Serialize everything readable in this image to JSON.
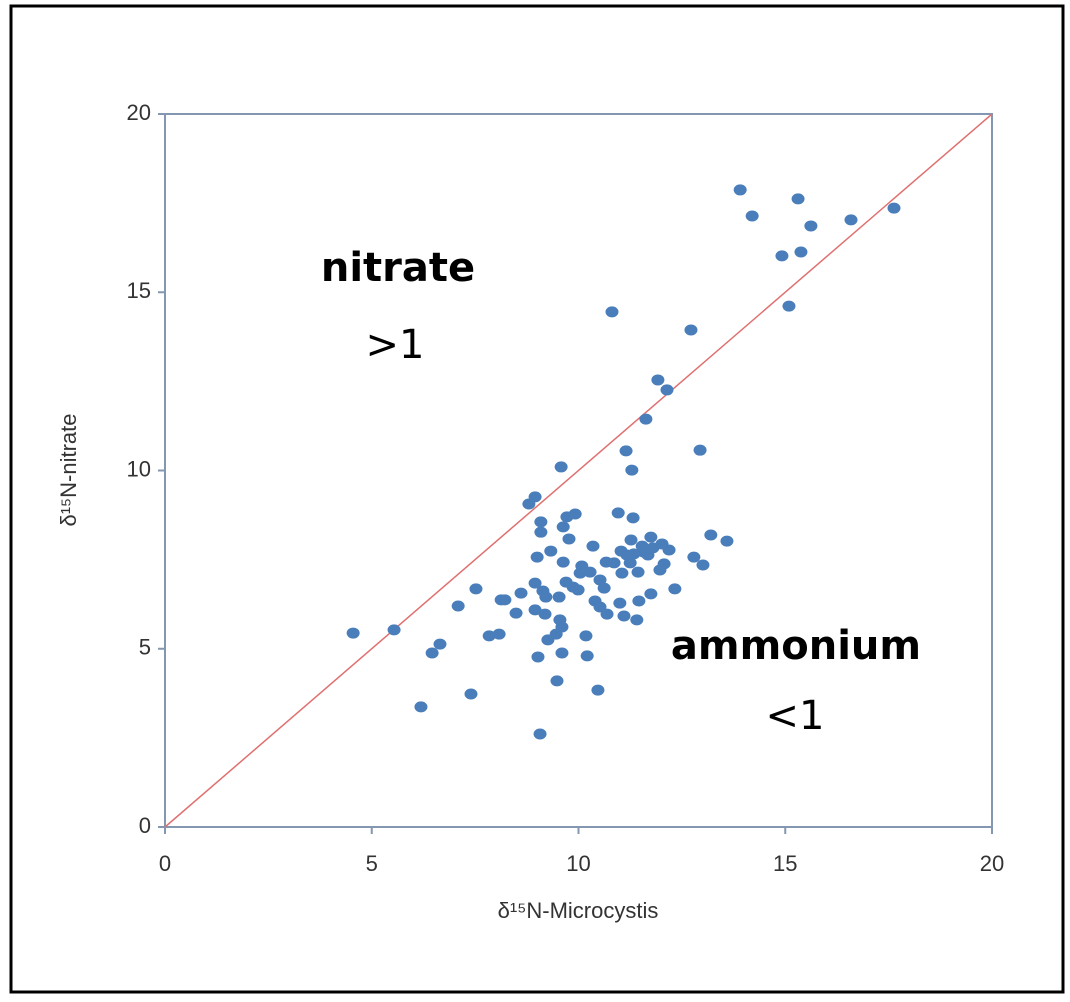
{
  "chart_data": {
    "type": "scatter",
    "x_label": "δ¹⁵N-Microcystis",
    "y_label": "δ¹⁵N-nitrate",
    "annotations": [
      "nitrate",
      ">1",
      "ammonium",
      "<1"
    ],
    "color": "#4a7ebb",
    "reference_line_color": "#e07070",
    "xlim": [
      0,
      20
    ],
    "ylim": [
      0,
      20
    ],
    "xticks": [
      0,
      5,
      10,
      15,
      20
    ],
    "yticks": [
      0,
      5,
      10,
      15,
      20
    ],
    "x": [
      4.55,
      5.54,
      6.19,
      6.46,
      6.65,
      7.09,
      7.4,
      7.52,
      7.84,
      8.08,
      8.13,
      8.22,
      8.49,
      8.61,
      8.8,
      8.95,
      8.95,
      8.95,
      9.0,
      9.02,
      9.07,
      9.09,
      9.09,
      9.14,
      9.19,
      9.21,
      9.26,
      9.33,
      9.46,
      9.48,
      9.53,
      9.55,
      9.58,
      9.6,
      9.6,
      9.63,
      9.63,
      9.7,
      9.72,
      9.77,
      9.87,
      9.92,
      9.99,
      10.04,
      10.08,
      10.18,
      10.21,
      10.28,
      10.35,
      10.4,
      10.47,
      10.52,
      10.52,
      10.62,
      10.67,
      10.69,
      10.81,
      10.86,
      10.96,
      11.0,
      11.03,
      11.05,
      11.1,
      11.15,
      11.17,
      11.25,
      11.27,
      11.29,
      11.32,
      11.34,
      11.41,
      11.44,
      11.46,
      11.54,
      11.58,
      11.63,
      11.68,
      11.75,
      11.75,
      11.8,
      11.92,
      11.97,
      12.02,
      12.07,
      12.14,
      12.19,
      12.33,
      12.72,
      12.79,
      12.94,
      13.01,
      13.2,
      13.59,
      13.91,
      14.2,
      14.92,
      15.09,
      15.31,
      15.38,
      15.62,
      16.59,
      17.63
    ],
    "values": [
      5.44,
      5.53,
      3.37,
      4.88,
      5.13,
      6.2,
      3.73,
      6.68,
      5.36,
      5.41,
      6.37,
      6.37,
      6.0,
      6.56,
      9.06,
      9.26,
      6.09,
      6.84,
      7.57,
      4.77,
      2.61,
      8.56,
      8.27,
      6.62,
      5.97,
      6.45,
      5.25,
      7.74,
      5.41,
      4.1,
      6.45,
      5.81,
      10.1,
      5.61,
      4.88,
      7.43,
      8.42,
      6.87,
      8.7,
      8.08,
      6.73,
      8.78,
      6.65,
      7.12,
      7.32,
      5.36,
      4.8,
      7.15,
      7.88,
      6.34,
      3.84,
      6.93,
      6.17,
      6.7,
      7.43,
      5.97,
      14.45,
      7.41,
      8.81,
      6.28,
      7.74,
      7.12,
      5.92,
      10.55,
      7.63,
      7.41,
      8.05,
      10.01,
      8.67,
      7.66,
      5.81,
      7.15,
      6.34,
      7.88,
      7.71,
      11.44,
      7.63,
      8.13,
      6.54,
      7.83,
      12.54,
      7.21,
      7.94,
      7.38,
      12.26,
      7.77,
      6.68,
      13.94,
      7.57,
      10.57,
      7.35,
      8.19,
      8.02,
      17.87,
      17.14,
      16.02,
      14.61,
      17.62,
      16.13,
      16.86,
      17.03,
      17.36
    ]
  }
}
